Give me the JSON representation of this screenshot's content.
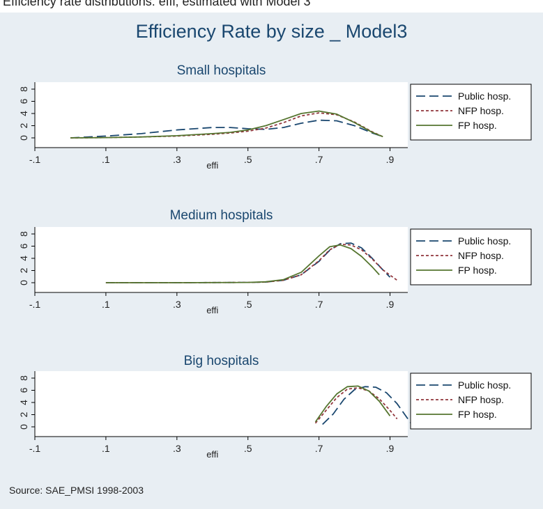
{
  "figure_caption": "Efficiency rate distributions: effi, estimated with Model 3",
  "title": "Efficiency Rate by size _ Model3",
  "source": "Source: SAE_PMSI 1998-2003",
  "colors": {
    "background": "#e8eef3",
    "title": "#1a476f",
    "public": "#1a476f",
    "nfp": "#90353b",
    "fp": "#55752f"
  },
  "chart_data": [
    {
      "type": "line",
      "title": "Small hospitals",
      "xlabel": "effi",
      "ylabel": "",
      "xlim": [
        -0.1,
        0.95
      ],
      "ylim": [
        0,
        8
      ],
      "x_ticks": [
        "-.1",
        ".1",
        ".3",
        ".5",
        ".7",
        ".9"
      ],
      "y_ticks": [
        "0",
        "2",
        "4",
        "6",
        "8"
      ],
      "legend": {
        "position": "right",
        "entries": [
          "Public hosp.",
          "NFP hosp.",
          "FP hosp."
        ]
      },
      "series": [
        {
          "name": "Public hosp.",
          "style": "long-dash",
          "x": [
            0.0,
            0.1,
            0.2,
            0.3,
            0.4,
            0.45,
            0.5,
            0.55,
            0.6,
            0.65,
            0.7,
            0.75,
            0.8,
            0.85,
            0.88
          ],
          "y": [
            0.0,
            0.3,
            0.7,
            1.3,
            1.7,
            1.7,
            1.5,
            1.4,
            1.7,
            2.4,
            2.9,
            2.8,
            2.0,
            0.8,
            0.2
          ]
        },
        {
          "name": "NFP hosp.",
          "style": "short-dash",
          "x": [
            0.0,
            0.1,
            0.2,
            0.3,
            0.4,
            0.45,
            0.5,
            0.55,
            0.6,
            0.65,
            0.7,
            0.75,
            0.8,
            0.85,
            0.88
          ],
          "y": [
            0.0,
            0.05,
            0.15,
            0.3,
            0.6,
            0.8,
            1.1,
            1.6,
            2.5,
            3.6,
            4.1,
            3.8,
            2.6,
            1.0,
            0.2
          ]
        },
        {
          "name": "FP hosp.",
          "style": "solid",
          "x": [
            0.0,
            0.1,
            0.2,
            0.3,
            0.4,
            0.45,
            0.5,
            0.55,
            0.6,
            0.65,
            0.7,
            0.75,
            0.8,
            0.85,
            0.88
          ],
          "y": [
            0.0,
            0.05,
            0.15,
            0.35,
            0.7,
            0.9,
            1.3,
            2.0,
            3.0,
            4.0,
            4.4,
            3.9,
            2.5,
            0.9,
            0.2
          ]
        }
      ]
    },
    {
      "type": "line",
      "title": "Medium hospitals",
      "xlabel": "effi",
      "ylabel": "",
      "xlim": [
        -0.1,
        0.95
      ],
      "ylim": [
        0,
        8
      ],
      "x_ticks": [
        "-.1",
        ".1",
        ".3",
        ".5",
        ".7",
        ".9"
      ],
      "y_ticks": [
        "0",
        "2",
        "4",
        "6",
        "8"
      ],
      "legend": {
        "position": "right",
        "entries": [
          "Public hosp.",
          "NFP hosp.",
          "FP hosp."
        ]
      },
      "series": [
        {
          "name": "Public hosp.",
          "style": "long-dash",
          "x": [
            0.1,
            0.3,
            0.5,
            0.55,
            0.6,
            0.65,
            0.7,
            0.73,
            0.76,
            0.79,
            0.82,
            0.85,
            0.88,
            0.9
          ],
          "y": [
            0.0,
            0.0,
            0.05,
            0.1,
            0.4,
            1.3,
            3.5,
            5.3,
            6.4,
            6.5,
            5.7,
            4.0,
            2.1,
            0.9
          ]
        },
        {
          "name": "NFP hosp.",
          "style": "short-dash",
          "x": [
            0.1,
            0.3,
            0.5,
            0.55,
            0.6,
            0.65,
            0.7,
            0.73,
            0.76,
            0.79,
            0.82,
            0.85,
            0.88,
            0.92
          ],
          "y": [
            0.0,
            0.0,
            0.05,
            0.1,
            0.4,
            1.3,
            3.6,
            5.4,
            6.3,
            6.2,
            5.4,
            3.9,
            2.1,
            0.4
          ]
        },
        {
          "name": "FP hosp.",
          "style": "solid",
          "x": [
            0.1,
            0.3,
            0.5,
            0.55,
            0.6,
            0.65,
            0.7,
            0.73,
            0.76,
            0.79,
            0.82,
            0.85,
            0.87
          ],
          "y": [
            0.0,
            0.0,
            0.05,
            0.15,
            0.5,
            1.7,
            4.4,
            5.9,
            6.2,
            5.6,
            4.3,
            2.6,
            1.3
          ]
        }
      ]
    },
    {
      "type": "line",
      "title": "Big hospitals",
      "xlabel": "effi",
      "ylabel": "",
      "xlim": [
        -0.1,
        0.95
      ],
      "ylim": [
        0,
        8
      ],
      "x_ticks": [
        "-.1",
        ".1",
        ".3",
        ".5",
        ".7",
        ".9"
      ],
      "y_ticks": [
        "0",
        "2",
        "4",
        "6",
        "8"
      ],
      "legend": {
        "position": "right",
        "entries": [
          "Public hosp.",
          "NFP hosp.",
          "FP hosp."
        ]
      },
      "series": [
        {
          "name": "Public hosp.",
          "style": "long-dash",
          "x": [
            0.71,
            0.74,
            0.77,
            0.8,
            0.83,
            0.86,
            0.89,
            0.92,
            0.96
          ],
          "y": [
            0.4,
            2.1,
            4.5,
            6.1,
            6.6,
            6.5,
            5.6,
            3.8,
            0.5
          ]
        },
        {
          "name": "NFP hosp.",
          "style": "short-dash",
          "x": [
            0.69,
            0.72,
            0.75,
            0.78,
            0.81,
            0.84,
            0.87,
            0.9,
            0.92
          ],
          "y": [
            0.6,
            2.7,
            4.8,
            6.2,
            6.4,
            5.9,
            4.6,
            2.7,
            1.3
          ]
        },
        {
          "name": "FP hosp.",
          "style": "solid",
          "x": [
            0.69,
            0.72,
            0.75,
            0.78,
            0.81,
            0.84,
            0.87,
            0.9
          ],
          "y": [
            0.8,
            3.3,
            5.4,
            6.6,
            6.7,
            5.9,
            4.2,
            1.8
          ]
        }
      ]
    }
  ]
}
